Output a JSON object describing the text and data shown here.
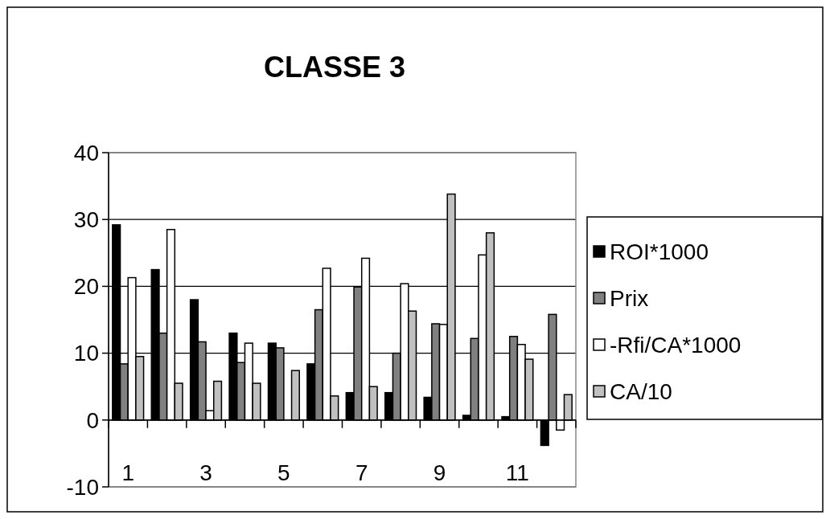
{
  "chart_data": {
    "type": "bar",
    "title": "CLASSE 3",
    "categories": [
      "1",
      null,
      "3",
      null,
      "5",
      null,
      "7",
      null,
      "9",
      null,
      "11",
      null
    ],
    "series": [
      {
        "name": "ROI*1000",
        "color": "#000000",
        "values": [
          29.2,
          22.5,
          18,
          13,
          11.5,
          8.4,
          4.1,
          4.1,
          3.4,
          0.7,
          0.5,
          -3.8
        ]
      },
      {
        "name": "Prix",
        "color": "#808080",
        "values": [
          8.4,
          13,
          11.7,
          8.6,
          10.8,
          16.5,
          19.9,
          10,
          14.4,
          12.2,
          12.5,
          15.8
        ]
      },
      {
        "name": "-Rfi/CA*1000",
        "color": "#ffffff",
        "values": [
          21.3,
          28.5,
          1.4,
          11.5,
          0,
          22.7,
          24.2,
          20.4,
          14.3,
          24.7,
          11.3,
          -1.5
        ]
      },
      {
        "name": "CA/10",
        "color": "#c0c0c0",
        "values": [
          9.5,
          5.5,
          5.8,
          5.5,
          7.4,
          3.6,
          5.0,
          16.3,
          33.8,
          28,
          9.1,
          3.8
        ]
      }
    ],
    "ylim": [
      -10,
      40
    ],
    "yticks": [
      -10,
      0,
      10,
      20,
      30,
      40
    ],
    "grid": "y",
    "legend": "right"
  }
}
